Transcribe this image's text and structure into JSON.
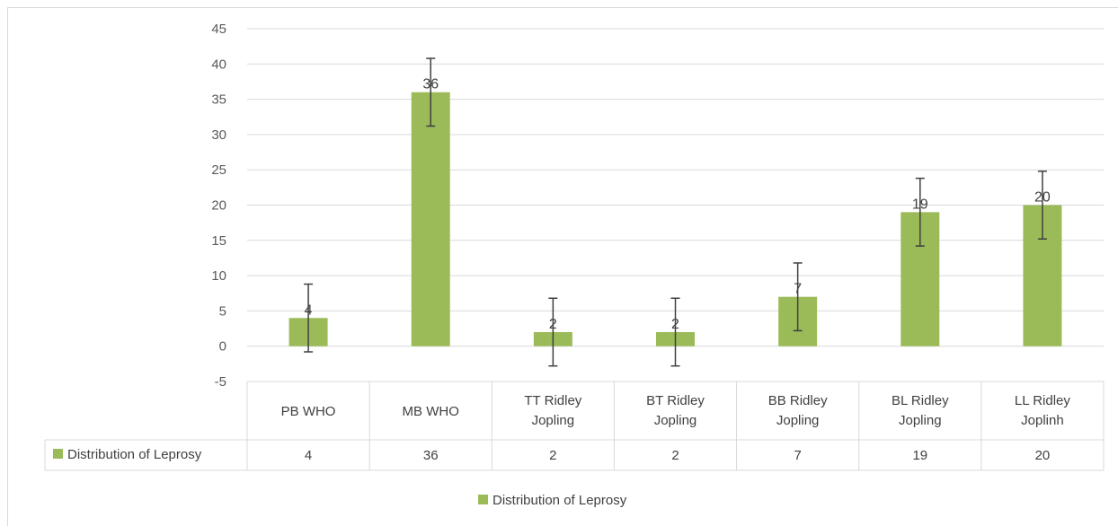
{
  "chart_data": {
    "type": "bar",
    "categories": [
      [
        "PB WHO"
      ],
      [
        "MB WHO"
      ],
      [
        "TT Ridley",
        "Jopling"
      ],
      [
        "BT Ridley",
        "Jopling"
      ],
      [
        "BB Ridley",
        "Jopling"
      ],
      [
        "BL Ridley",
        "Jopling"
      ],
      [
        "LL Ridley",
        "Joplinh"
      ]
    ],
    "series": [
      {
        "name": "Distribution of Leprosy",
        "values": [
          4,
          36,
          2,
          2,
          7,
          19,
          20
        ],
        "color": "#9bbb59"
      }
    ],
    "error_bar": 4.8,
    "ylim": [
      -5,
      45
    ],
    "yticks": [
      -5,
      0,
      5,
      10,
      15,
      20,
      25,
      30,
      35,
      40,
      45
    ],
    "data_labels": [
      "4",
      "36",
      "2",
      "2",
      "7",
      "19",
      "20"
    ],
    "data_table": true,
    "legend_position": "bottom",
    "grid": true,
    "title": "",
    "xlabel": "",
    "ylabel": ""
  },
  "colors": {
    "bar": "#9bbb59",
    "grid": "#d9d9d9",
    "error": "#404040"
  }
}
